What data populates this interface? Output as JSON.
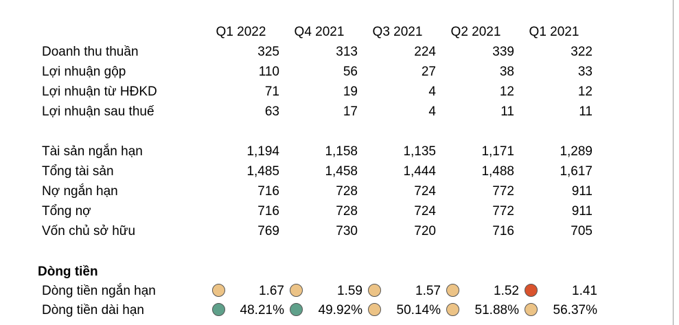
{
  "periods": [
    "Q1 2022",
    "Q4 2021",
    "Q3 2021",
    "Q2 2021",
    "Q1 2021"
  ],
  "income": [
    {
      "label": "Doanh thu thuần",
      "values": [
        "325",
        "313",
        "224",
        "339",
        "322"
      ]
    },
    {
      "label": "Lợi nhuận gộp",
      "values": [
        "110",
        "56",
        "27",
        "38",
        "33"
      ]
    },
    {
      "label": "Lợi nhuận từ HĐKD",
      "values": [
        "71",
        "19",
        "4",
        "12",
        "12"
      ]
    },
    {
      "label": "Lợi nhuận sau thuế",
      "values": [
        "63",
        "17",
        "4",
        "11",
        "11"
      ]
    }
  ],
  "balance": [
    {
      "label": "Tài sản ngắn hạn",
      "values": [
        "1,194",
        "1,158",
        "1,135",
        "1,171",
        "1,289"
      ]
    },
    {
      "label": "Tổng tài sản",
      "values": [
        "1,485",
        "1,458",
        "1,444",
        "1,488",
        "1,617"
      ]
    },
    {
      "label": "Nợ ngắn hạn",
      "values": [
        "716",
        "728",
        "724",
        "772",
        "911"
      ]
    },
    {
      "label": "Tổng nợ",
      "values": [
        "716",
        "728",
        "724",
        "772",
        "911"
      ]
    },
    {
      "label": "Vốn chủ sở hữu",
      "values": [
        "769",
        "730",
        "720",
        "716",
        "705"
      ]
    }
  ],
  "cashflow": {
    "title": "Dòng tiền",
    "rows": [
      {
        "label": "Dòng tiền ngắn hạn",
        "values": [
          "1.67",
          "1.59",
          "1.57",
          "1.52",
          "1.41"
        ],
        "status": [
          "neutral",
          "neutral",
          "neutral",
          "neutral",
          "bad"
        ]
      },
      {
        "label": "Dòng tiền dài hạn",
        "values": [
          "48.21%",
          "49.92%",
          "50.14%",
          "51.88%",
          "56.37%"
        ],
        "status": [
          "good",
          "good",
          "neutral",
          "neutral",
          "neutral"
        ]
      }
    ]
  },
  "status_colors": {
    "good": "#5fa08a",
    "neutral": "#ecc386",
    "bad": "#d9532d"
  }
}
